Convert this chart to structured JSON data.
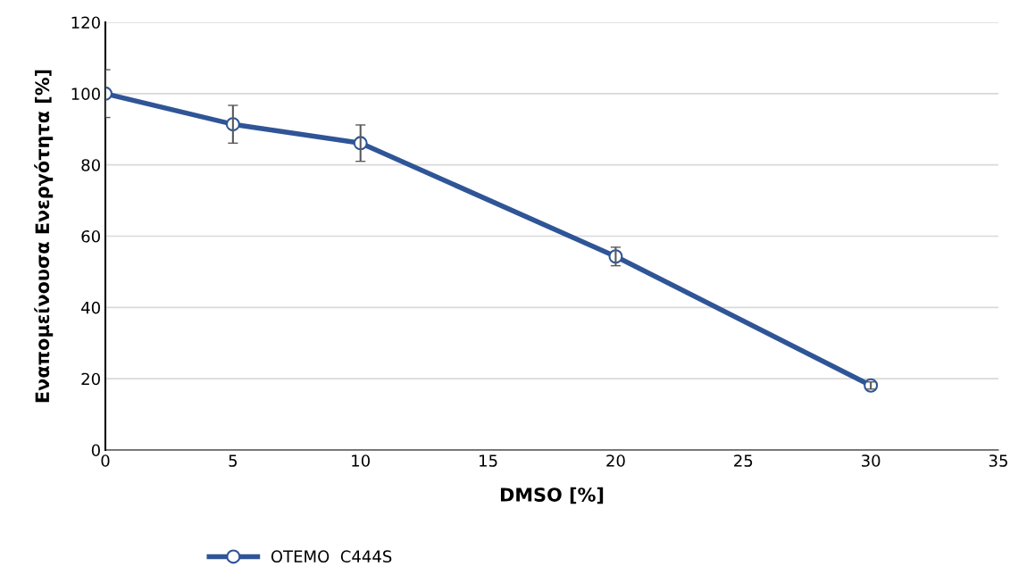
{
  "chart_data": {
    "type": "line",
    "xlabel": "DMSO [%]",
    "ylabel": "Εναπομείνουσα Ενεργότητα [%]",
    "x": [
      0,
      5,
      10,
      20,
      30
    ],
    "series": [
      {
        "name": "OTEMO  C444S",
        "color": "#2f5597",
        "values": [
          100,
          91.4,
          86.1,
          54.3,
          18.1
        ],
        "errors": [
          6.7,
          5.3,
          5.1,
          2.6,
          1
        ]
      }
    ],
    "xlim": [
      0,
      35
    ],
    "xticks": [
      0,
      5,
      10,
      15,
      20,
      25,
      30,
      35
    ],
    "ylim": [
      0,
      120
    ],
    "yticks": [
      0,
      20,
      40,
      60,
      80,
      100,
      120
    ],
    "grid": "y",
    "legend": "bottom",
    "marker": "circle",
    "line_style": "solid"
  }
}
